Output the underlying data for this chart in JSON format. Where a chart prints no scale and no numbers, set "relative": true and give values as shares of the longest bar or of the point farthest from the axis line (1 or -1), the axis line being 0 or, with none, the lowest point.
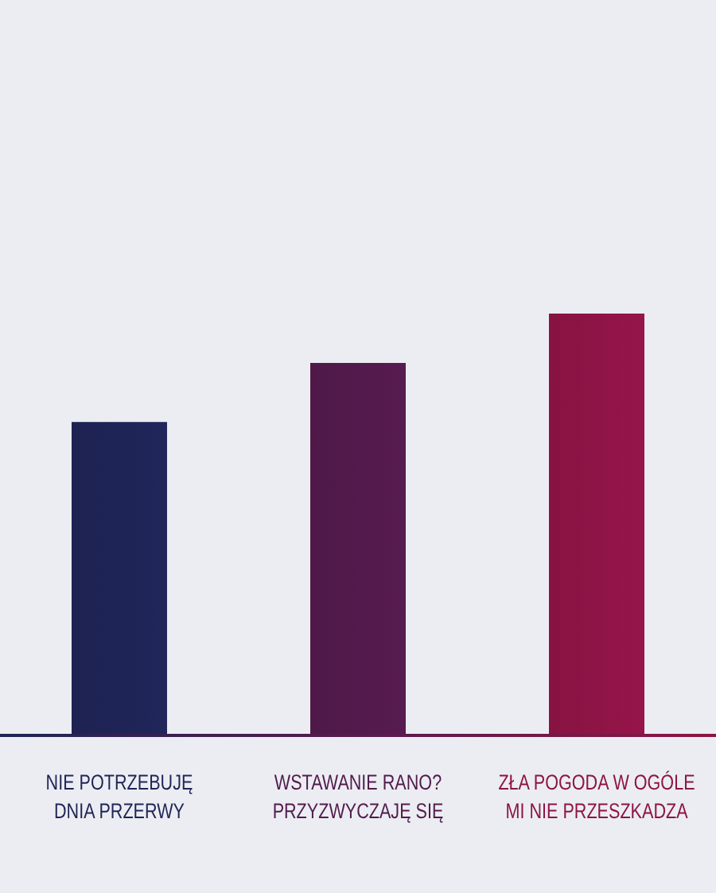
{
  "chart_data": {
    "type": "bar",
    "relative": true,
    "categories": [
      "NIE POTRZEBUJĘ\nDNIA PRZERWY",
      "WSTAWANIE RANO?\nPRZYZWYCZAJĘ SIĘ",
      "ZŁA POGODA W OGÓLE\nMI NIE PRZESZKADZA"
    ],
    "values": [
      0.743,
      0.883,
      1
    ],
    "colors": [
      "#1f2456",
      "#521a4c",
      "#8e1446"
    ]
  }
}
